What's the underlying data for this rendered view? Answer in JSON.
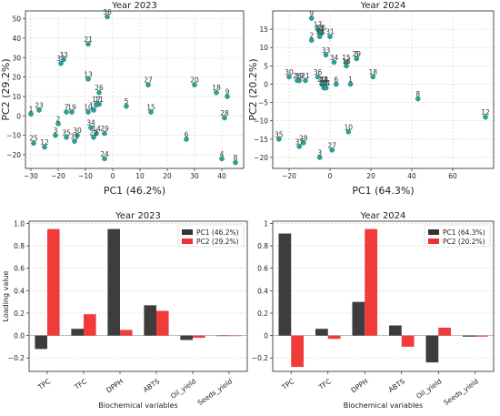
{
  "chart_data": [
    {
      "type": "scatter",
      "title": "Year 2023",
      "xlabel": "PC1 (46.2%)",
      "ylabel": "PC2 (29.2%)",
      "xlim": [
        -32,
        48
      ],
      "ylim": [
        -27,
        54
      ],
      "xticks": [
        -30,
        -20,
        -10,
        0,
        10,
        20,
        30,
        40
      ],
      "yticks": [
        -20,
        -10,
        0,
        10,
        20,
        30,
        40,
        50
      ],
      "grid": true,
      "point_color": "#2aa198",
      "label_color": "#333333",
      "points": [
        {
          "label": "1",
          "x": -30,
          "y": 1
        },
        {
          "label": "2",
          "x": -20,
          "y": -4
        },
        {
          "label": "3",
          "x": -21,
          "y": -10
        },
        {
          "label": "4",
          "x": 40,
          "y": -22
        },
        {
          "label": "5",
          "x": 5,
          "y": 5
        },
        {
          "label": "6",
          "x": 27,
          "y": -12
        },
        {
          "label": "7",
          "x": -17,
          "y": 2
        },
        {
          "label": "8",
          "x": 45,
          "y": -24
        },
        {
          "label": "9",
          "x": 42,
          "y": 10
        },
        {
          "label": "10",
          "x": -9,
          "y": 2
        },
        {
          "label": "11",
          "x": -5,
          "y": 6
        },
        {
          "label": "12",
          "x": -25,
          "y": -16
        },
        {
          "label": "13",
          "x": -9,
          "y": 19
        },
        {
          "label": "14",
          "x": -6,
          "y": -9
        },
        {
          "label": "15",
          "x": 14,
          "y": 2
        },
        {
          "label": "16",
          "x": -7,
          "y": 3
        },
        {
          "label": "17",
          "x": -6,
          "y": 6
        },
        {
          "label": "18",
          "x": 38,
          "y": 12
        },
        {
          "label": "19",
          "x": -15,
          "y": 2
        },
        {
          "label": "20",
          "x": 30,
          "y": 16
        },
        {
          "label": "21",
          "x": -9,
          "y": 37
        },
        {
          "label": "22",
          "x": -7,
          "y": -11
        },
        {
          "label": "23",
          "x": -27,
          "y": 3
        },
        {
          "label": "24",
          "x": -3,
          "y": -22
        },
        {
          "label": "25",
          "x": -29,
          "y": -14
        },
        {
          "label": "26",
          "x": -5,
          "y": 12
        },
        {
          "label": "27",
          "x": 13,
          "y": 16
        },
        {
          "label": "28",
          "x": 41,
          "y": -1
        },
        {
          "label": "29",
          "x": -3,
          "y": -9
        },
        {
          "label": "30",
          "x": -13,
          "y": -10
        },
        {
          "label": "31",
          "x": -14,
          "y": -13
        },
        {
          "label": "32",
          "x": -19,
          "y": 27
        },
        {
          "label": "33",
          "x": -18,
          "y": 29
        },
        {
          "label": "34",
          "x": -8,
          "y": -6
        },
        {
          "label": "35",
          "x": -17,
          "y": -11
        },
        {
          "label": "36",
          "x": -2,
          "y": 51
        }
      ]
    },
    {
      "type": "scatter",
      "title": "Year 2024",
      "xlabel": "PC1 (64.3%)",
      "ylabel": "PC2 (20.2%)",
      "xlim": [
        -28,
        80
      ],
      "ylim": [
        -23,
        20
      ],
      "xticks": [
        -20,
        0,
        20,
        40,
        60
      ],
      "yticks": [
        -20,
        -15,
        -10,
        -5,
        0,
        5,
        10,
        15
      ],
      "grid": true,
      "point_color": "#2aa198",
      "label_color": "#333333",
      "points": [
        {
          "label": "1",
          "x": 10,
          "y": 0
        },
        {
          "label": "2",
          "x": -9,
          "y": 12
        },
        {
          "label": "3",
          "x": -5,
          "y": -20
        },
        {
          "label": "4",
          "x": -2,
          "y": -1
        },
        {
          "label": "5",
          "x": 13,
          "y": 7
        },
        {
          "label": "6",
          "x": 3,
          "y": 0
        },
        {
          "label": "7",
          "x": -4,
          "y": 14
        },
        {
          "label": "8",
          "x": 43,
          "y": -4
        },
        {
          "label": "9",
          "x": -9,
          "y": 18
        },
        {
          "label": "10",
          "x": 9,
          "y": -13
        },
        {
          "label": "11",
          "x": -5,
          "y": 14
        },
        {
          "label": "12",
          "x": 76,
          "y": -9
        },
        {
          "label": "13",
          "x": -5,
          "y": 14
        },
        {
          "label": "14",
          "x": -3,
          "y": 0
        },
        {
          "label": "15",
          "x": 8,
          "y": 6
        },
        {
          "label": "16",
          "x": 8,
          "y": 5
        },
        {
          "label": "17",
          "x": -6,
          "y": 15
        },
        {
          "label": "18",
          "x": 21,
          "y": 2
        },
        {
          "label": "19",
          "x": -15,
          "y": 1
        },
        {
          "label": "20",
          "x": -4,
          "y": 0
        },
        {
          "label": "21",
          "x": -12,
          "y": 1
        },
        {
          "label": "22",
          "x": -3,
          "y": -1
        },
        {
          "label": "23",
          "x": -3,
          "y": 0
        },
        {
          "label": "24",
          "x": -2,
          "y": -1
        },
        {
          "label": "25",
          "x": -4,
          "y": 14
        },
        {
          "label": "26",
          "x": -16,
          "y": 1
        },
        {
          "label": "27",
          "x": 1,
          "y": -18
        },
        {
          "label": "28",
          "x": -13,
          "y": -16
        },
        {
          "label": "29",
          "x": 13,
          "y": 7
        },
        {
          "label": "30",
          "x": -20,
          "y": 2
        },
        {
          "label": "31",
          "x": 0,
          "y": 13
        },
        {
          "label": "32",
          "x": -5,
          "y": 13
        },
        {
          "label": "33",
          "x": -2,
          "y": 8
        },
        {
          "label": "34",
          "x": 2,
          "y": 6
        },
        {
          "label": "35",
          "x": -25,
          "y": -15
        },
        {
          "label": "36",
          "x": -6,
          "y": 2
        },
        {
          "label": "37",
          "x": -15,
          "y": -17
        }
      ]
    },
    {
      "type": "bar",
      "title": "Year 2023",
      "xlabel": "Biochemical variables",
      "ylabel": "Loading value",
      "ylim": [
        -0.32,
        1.02
      ],
      "yticks": [
        -0.2,
        0.0,
        0.2,
        0.4,
        0.6,
        0.8,
        1.0
      ],
      "ytick_labels": [
        "−0.2",
        "0.0",
        "0.2",
        "0.4",
        "0.6",
        "0.8",
        "1.0"
      ],
      "grid": true,
      "legend": "top-right",
      "categories": [
        "TPC",
        "TFC",
        "DPPH",
        "ABTS",
        "Oil_yield",
        "Seeds_yield"
      ],
      "series": [
        {
          "name": "PC1 (46.2%)",
          "color": "#333333",
          "values": [
            -0.12,
            0.06,
            0.95,
            0.27,
            -0.04,
            -0.005
          ]
        },
        {
          "name": "PC2 (29.2%)",
          "color": "#f03030",
          "values": [
            0.95,
            0.19,
            0.05,
            0.22,
            -0.02,
            -0.005
          ]
        }
      ]
    },
    {
      "type": "bar",
      "title": "Year 2024",
      "xlabel": "Biochemical variables",
      "ylabel": "",
      "ylim": [
        -0.32,
        1.02
      ],
      "yticks": [
        -0.2,
        0.0,
        0.2,
        0.4,
        0.6,
        0.8,
        1.0
      ],
      "grid": true,
      "legend": "top-right",
      "categories": [
        "TPC",
        "TFC",
        "DPPH",
        "ABTS",
        "Oil_yield",
        "Seeds_yield"
      ],
      "series": [
        {
          "name": "PC1 (64.3%)",
          "color": "#333333",
          "values": [
            0.91,
            0.06,
            0.3,
            0.09,
            -0.24,
            -0.01
          ]
        },
        {
          "name": "PC2 (20.2%)",
          "color": "#f03030",
          "values": [
            -0.28,
            -0.03,
            0.95,
            -0.1,
            0.07,
            -0.01
          ]
        }
      ]
    }
  ]
}
